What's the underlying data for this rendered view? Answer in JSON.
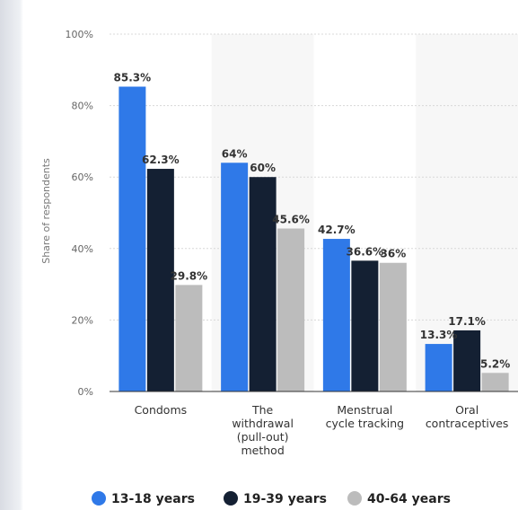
{
  "chart_data": {
    "type": "bar",
    "categories": [
      [
        "Condoms"
      ],
      [
        "The",
        "withdrawal",
        "(pull-out)",
        "method"
      ],
      [
        "Menstrual",
        "cycle tracking"
      ],
      [
        "Oral",
        "contraceptives"
      ]
    ],
    "series": [
      {
        "name": "13-18 years",
        "color": "#2f79e8",
        "values": [
          85.3,
          64,
          42.7,
          13.3
        ],
        "labels": [
          "85.3%",
          "64%",
          "42.7%",
          "13.3%"
        ]
      },
      {
        "name": "19-39 years",
        "color": "#142033",
        "values": [
          62.3,
          60,
          36.6,
          17.1
        ],
        "labels": [
          "62.3%",
          "60%",
          "36.6%",
          "17.1%"
        ]
      },
      {
        "name": "40-64 years",
        "color": "#bcbcbc",
        "values": [
          29.8,
          45.6,
          36,
          5.2
        ],
        "labels": [
          "29.8%",
          "45.6%",
          "36%",
          "5.2%"
        ]
      }
    ],
    "ylabel": "Share of respondents",
    "ylim": [
      0,
      100
    ],
    "yticks": [
      "0%",
      "20%",
      "40%",
      "60%",
      "80%",
      "100%"
    ],
    "grid": true,
    "legend": "bottom"
  }
}
